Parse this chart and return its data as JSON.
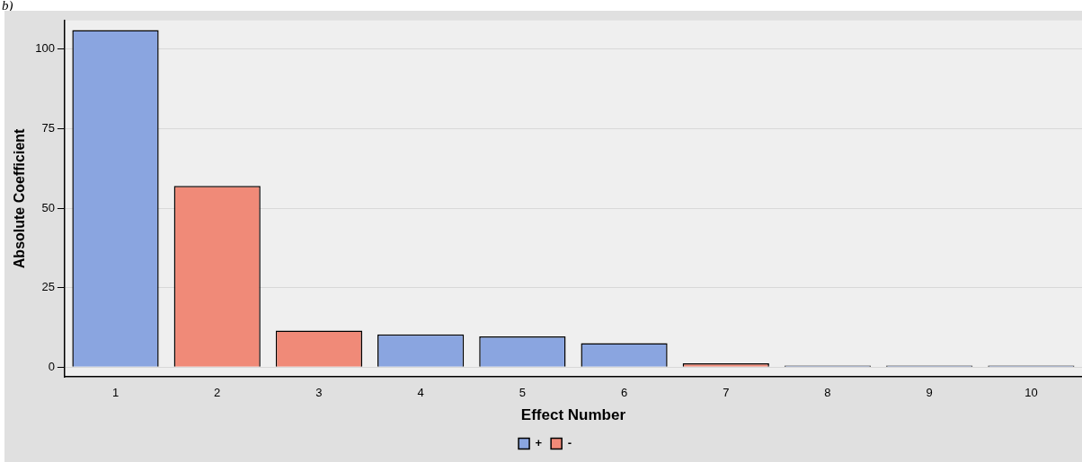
{
  "chart_data": {
    "type": "bar",
    "title": "b)",
    "xlabel": "Effect Number",
    "ylabel": "Absolute Coefficient",
    "categories": [
      "1",
      "2",
      "3",
      "4",
      "5",
      "6",
      "7",
      "8",
      "9",
      "10"
    ],
    "series": [
      {
        "name": "+",
        "color": "#8aa5e0",
        "values": [
          106,
          null,
          null,
          10.3,
          9.7,
          7.6,
          null,
          0.5,
          0.5,
          0.5
        ]
      },
      {
        "name": "-",
        "color": "#f08a78",
        "values": [
          null,
          57,
          11.5,
          null,
          null,
          null,
          1.2,
          null,
          null,
          null
        ]
      }
    ],
    "ylim": [
      -3,
      109
    ],
    "yticks": [
      0,
      25,
      50,
      75,
      100
    ],
    "grid": "y",
    "legend": "bottom"
  }
}
